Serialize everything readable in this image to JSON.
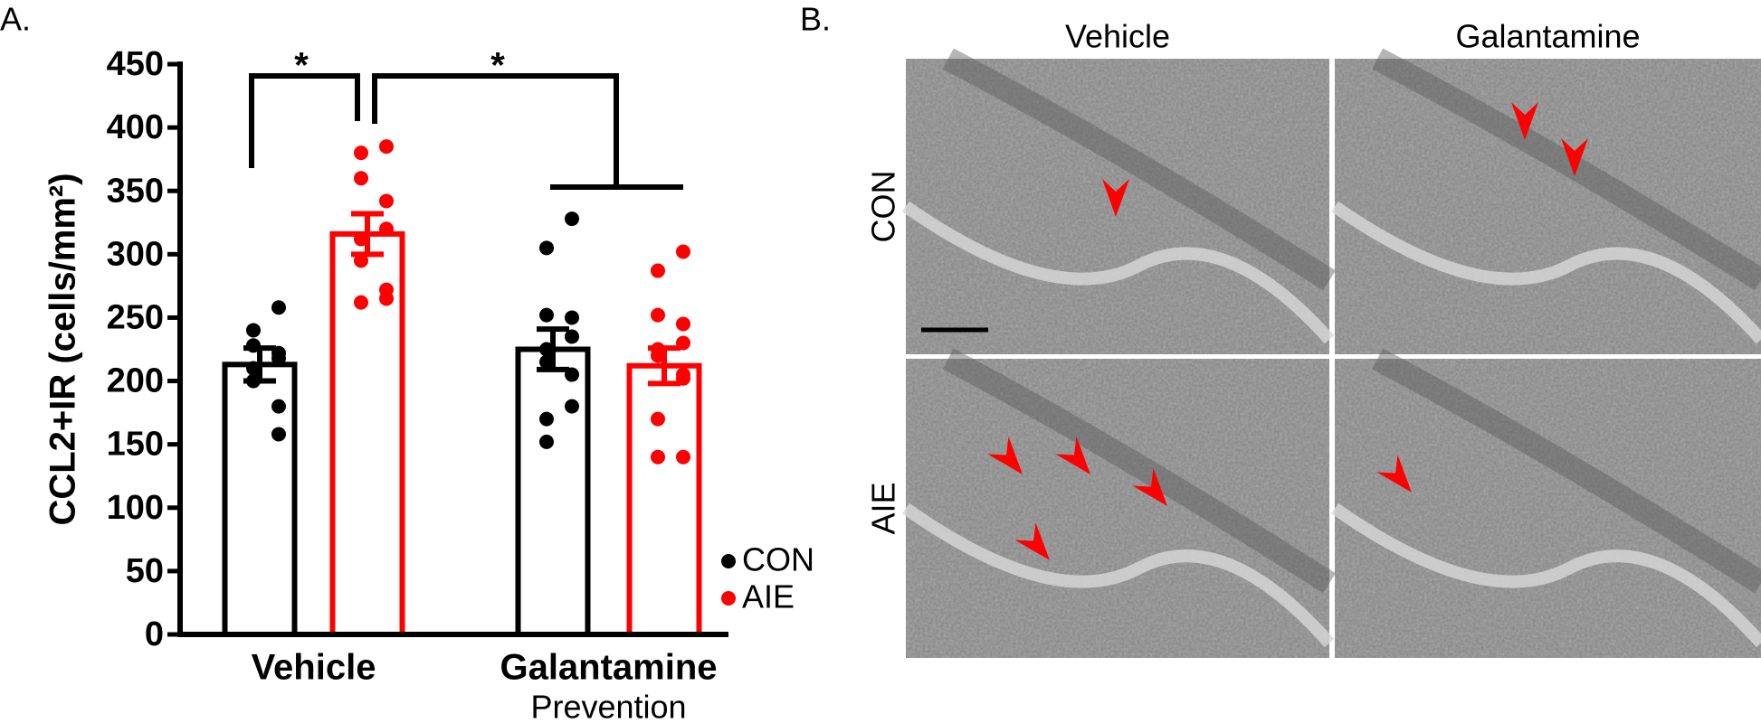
{
  "panel_a_label": "A.",
  "panel_b_label": "B.",
  "chart_data": {
    "type": "bar",
    "ylabel": "CCL2+IR (cells/mm²)",
    "categories": [
      [
        "Vehicle"
      ],
      [
        "Galantamine",
        "Prevention"
      ]
    ],
    "ylim": [
      0,
      450
    ],
    "yticks": [
      0,
      50,
      100,
      150,
      200,
      250,
      300,
      350,
      400,
      450
    ],
    "annotations": [
      "*",
      "*"
    ],
    "series": [
      {
        "name": "CON",
        "color": "#000000",
        "values": [
          213,
          225
        ],
        "errors": [
          13,
          16
        ],
        "points": [
          [
            258,
            240,
            228,
            222,
            218,
            210,
            200,
            180,
            158
          ],
          [
            328,
            305,
            252,
            250,
            235,
            225,
            215,
            205,
            180,
            170,
            152
          ]
        ]
      },
      {
        "name": "AIE",
        "color": "#ff0000",
        "values": [
          316,
          212
        ],
        "errors": [
          16,
          14
        ],
        "points": [
          [
            385,
            380,
            360,
            342,
            320,
            312,
            295,
            272,
            265,
            262
          ],
          [
            302,
            287,
            252,
            245,
            230,
            225,
            220,
            205,
            202,
            170,
            140,
            140
          ]
        ]
      }
    ]
  },
  "micrographs": {
    "columns": [
      "Vehicle",
      "Galantamine"
    ],
    "rows": [
      "CON",
      "AIE"
    ]
  }
}
